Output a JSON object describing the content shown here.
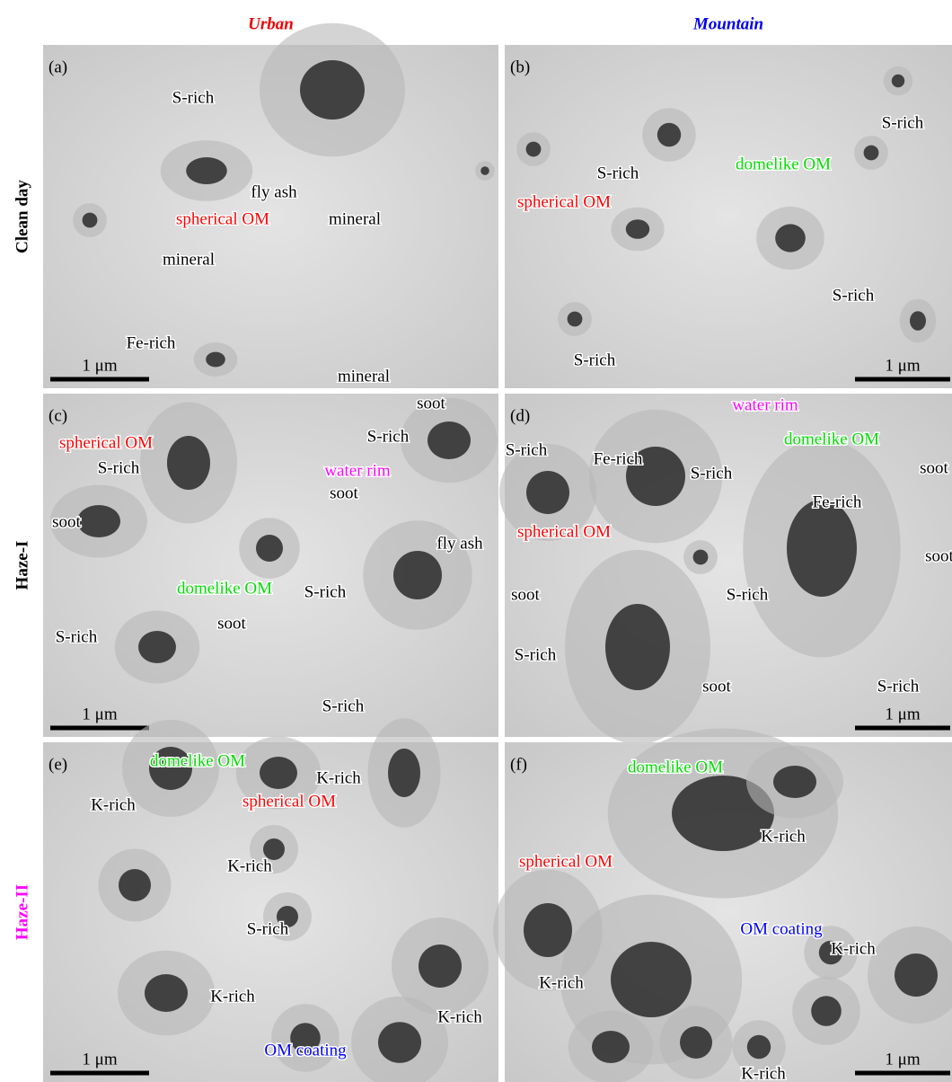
{
  "columns": [
    "Urban",
    "Mountain"
  ],
  "rows": [
    {
      "label": "Clean day",
      "color": "#000000"
    },
    {
      "label": "Haze-I",
      "color": "#000000"
    },
    {
      "label": "Haze-II",
      "color": "#ff00ff"
    }
  ],
  "panels": [
    {
      "letter": "(a)",
      "scale": "1 μm",
      "annotations": [
        {
          "text": "S-rich",
          "color": "#000000"
        },
        {
          "text": "fly ash",
          "color": "#000000"
        },
        {
          "text": "spherical OM",
          "color": "#ff0000"
        },
        {
          "text": "mineral",
          "color": "#000000"
        },
        {
          "text": "mineral",
          "color": "#000000"
        },
        {
          "text": "Fe-rich",
          "color": "#000000"
        },
        {
          "text": "mineral",
          "color": "#000000"
        }
      ]
    },
    {
      "letter": "(b)",
      "scale": "1 μm",
      "annotations": [
        {
          "text": "S-rich",
          "color": "#000000"
        },
        {
          "text": "domelike OM",
          "color": "#00dd00"
        },
        {
          "text": "S-rich",
          "color": "#000000"
        },
        {
          "text": "spherical OM",
          "color": "#ff0000"
        },
        {
          "text": "S-rich",
          "color": "#000000"
        },
        {
          "text": "S-rich",
          "color": "#000000"
        }
      ]
    },
    {
      "letter": "(c)",
      "scale": "1 μm",
      "annotations": [
        {
          "text": "soot",
          "color": "#000000"
        },
        {
          "text": "S-rich",
          "color": "#000000"
        },
        {
          "text": "spherical OM",
          "color": "#ff0000"
        },
        {
          "text": "water rim",
          "color": "#ff00ff"
        },
        {
          "text": "S-rich",
          "color": "#000000"
        },
        {
          "text": "soot",
          "color": "#000000"
        },
        {
          "text": "soot",
          "color": "#000000"
        },
        {
          "text": "fly ash",
          "color": "#000000"
        },
        {
          "text": "domelike OM",
          "color": "#00dd00"
        },
        {
          "text": "S-rich",
          "color": "#000000"
        },
        {
          "text": "S-rich",
          "color": "#000000"
        },
        {
          "text": "soot",
          "color": "#000000"
        },
        {
          "text": "S-rich",
          "color": "#000000"
        }
      ]
    },
    {
      "letter": "(d)",
      "scale": "1 μm",
      "annotations": [
        {
          "text": "water rim",
          "color": "#ff00ff"
        },
        {
          "text": "S-rich",
          "color": "#000000"
        },
        {
          "text": "Fe-rich",
          "color": "#000000"
        },
        {
          "text": "domelike OM",
          "color": "#00dd00"
        },
        {
          "text": "S-rich",
          "color": "#000000"
        },
        {
          "text": "soot",
          "color": "#000000"
        },
        {
          "text": "Fe-rich",
          "color": "#000000"
        },
        {
          "text": "spherical OM",
          "color": "#ff0000"
        },
        {
          "text": "soot",
          "color": "#000000"
        },
        {
          "text": "soot",
          "color": "#000000"
        },
        {
          "text": "S-rich",
          "color": "#000000"
        },
        {
          "text": "S-rich",
          "color": "#000000"
        },
        {
          "text": "soot",
          "color": "#000000"
        },
        {
          "text": "S-rich",
          "color": "#000000"
        }
      ]
    },
    {
      "letter": "(e)",
      "scale": "1 μm",
      "annotations": [
        {
          "text": "domelike OM",
          "color": "#00dd00"
        },
        {
          "text": "K-rich",
          "color": "#000000"
        },
        {
          "text": "K-rich",
          "color": "#000000"
        },
        {
          "text": "spherical OM",
          "color": "#ff0000"
        },
        {
          "text": "K-rich",
          "color": "#000000"
        },
        {
          "text": "S-rich",
          "color": "#000000"
        },
        {
          "text": "K-rich",
          "color": "#000000"
        },
        {
          "text": "K-rich",
          "color": "#000000"
        },
        {
          "text": "OM coating",
          "color": "#0000ff"
        }
      ]
    },
    {
      "letter": "(f)",
      "scale": "1 μm",
      "annotations": [
        {
          "text": "domelike OM",
          "color": "#00dd00"
        },
        {
          "text": "K-rich",
          "color": "#000000"
        },
        {
          "text": "spherical OM",
          "color": "#ff0000"
        },
        {
          "text": "OM coating",
          "color": "#0000ff"
        },
        {
          "text": "K-rich",
          "color": "#000000"
        },
        {
          "text": "K-rich",
          "color": "#000000"
        },
        {
          "text": "K-rich",
          "color": "#000000"
        }
      ]
    }
  ]
}
